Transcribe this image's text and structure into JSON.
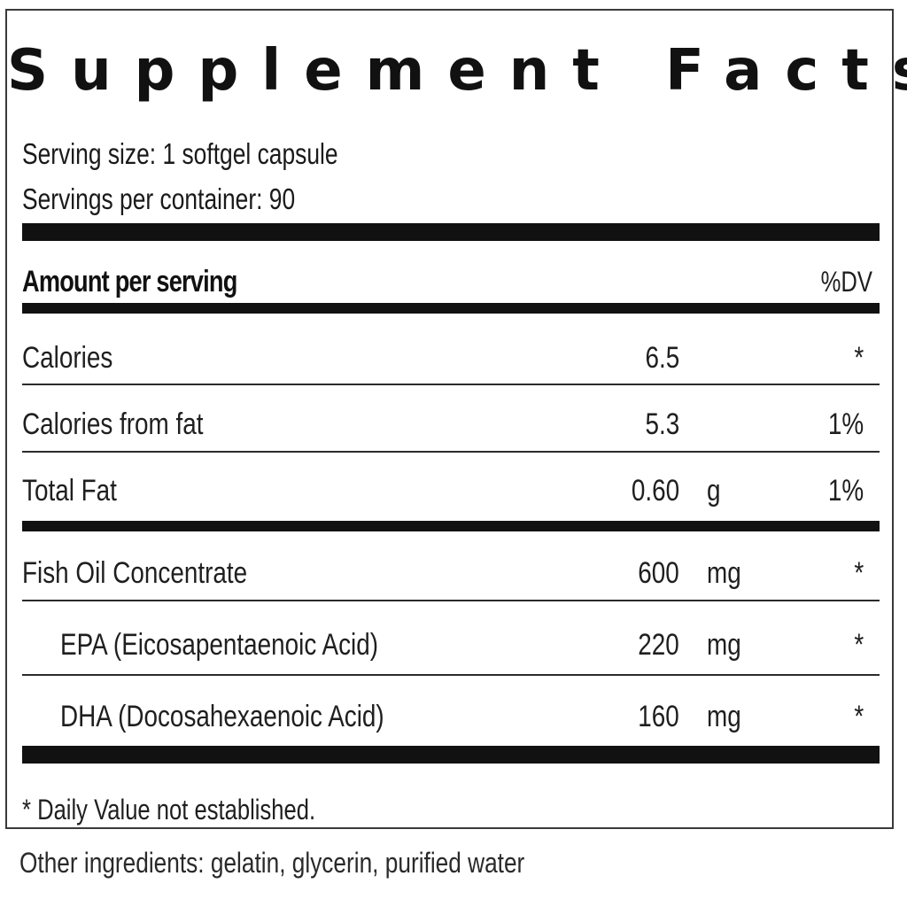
{
  "title": "Supplement Facts",
  "serving": {
    "size": "Serving size: 1 softgel capsule",
    "per_container": "Servings per container:  90"
  },
  "header": {
    "amount_label": "Amount per serving",
    "dv_label": "%DV"
  },
  "rows": [
    {
      "label": "Calories",
      "amount": "6.5",
      "unit": "",
      "dv": "*"
    },
    {
      "label": "Calories from fat",
      "amount": "5.3",
      "unit": "",
      "dv": "1%"
    },
    {
      "label": "Total Fat",
      "amount": "0.60",
      "unit": "g",
      "dv": "1%"
    },
    {
      "label": "Fish Oil Concentrate",
      "amount": "600",
      "unit": "mg",
      "dv": "*"
    },
    {
      "label": "EPA (Eicosapentaenoic Acid)",
      "amount": "220",
      "unit": "mg",
      "dv": "*"
    },
    {
      "label": "DHA (Docosahexaenoic Acid)",
      "amount": "160",
      "unit": "mg",
      "dv": "*"
    }
  ],
  "footnote": "* Daily Value not established.",
  "other_ingredients": "Other ingredients:  gelatin, glycerin, purified water"
}
